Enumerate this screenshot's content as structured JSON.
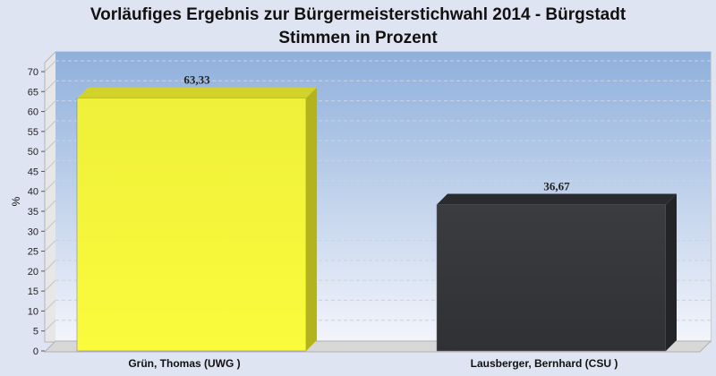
{
  "chart_data": {
    "type": "bar",
    "title": "Vorläufiges Ergebnis zur Bürgermeisterstichwahl 2014 - Bürgstadt",
    "subtitle": "Stimmen in Prozent",
    "ylabel": "%",
    "ylim": [
      0,
      70
    ],
    "ytick_step": 5,
    "grid": true,
    "categories": [
      "Grün, Thomas (UWG )",
      "Lausberger, Bernhard (CSU )"
    ],
    "values": [
      63.33,
      36.67
    ],
    "value_labels": [
      "63,33",
      "36,67"
    ],
    "colors": [
      "#f6f535",
      "#3b3d42"
    ]
  }
}
